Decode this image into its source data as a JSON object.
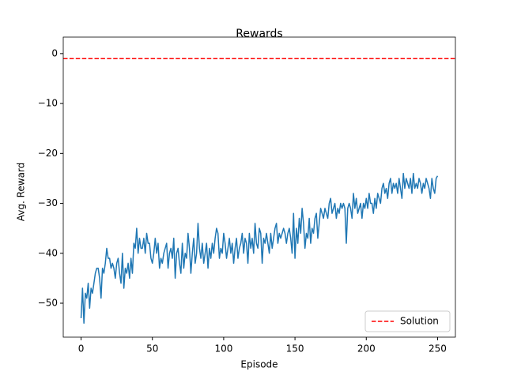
{
  "chart_data": {
    "type": "line",
    "title": "Rewards",
    "xlabel": "Episode",
    "ylabel": "Avg. Reward",
    "xlim": [
      -12.5,
      262.5
    ],
    "ylim": [
      -56.8,
      3.3
    ],
    "xticks": [
      0,
      50,
      100,
      150,
      200,
      250
    ],
    "yticks": [
      {
        "value": 0,
        "label": "0"
      },
      {
        "value": -10,
        "label": "−10"
      },
      {
        "value": -20,
        "label": "−20"
      },
      {
        "value": -30,
        "label": "−30"
      },
      {
        "value": -40,
        "label": "−40"
      },
      {
        "value": -50,
        "label": "−50"
      }
    ],
    "legend": "lower right",
    "x": [
      0,
      1,
      2,
      3,
      4,
      5,
      6,
      7,
      8,
      9,
      10,
      11,
      12,
      13,
      14,
      15,
      16,
      17,
      18,
      19,
      20,
      21,
      22,
      23,
      24,
      25,
      26,
      27,
      28,
      29,
      30,
      31,
      32,
      33,
      34,
      35,
      36,
      37,
      38,
      39,
      40,
      41,
      42,
      43,
      44,
      45,
      46,
      47,
      48,
      49,
      50,
      51,
      52,
      53,
      54,
      55,
      56,
      57,
      58,
      59,
      60,
      61,
      62,
      63,
      64,
      65,
      66,
      67,
      68,
      69,
      70,
      71,
      72,
      73,
      74,
      75,
      76,
      77,
      78,
      79,
      80,
      81,
      82,
      83,
      84,
      85,
      86,
      87,
      88,
      89,
      90,
      91,
      92,
      93,
      94,
      95,
      96,
      97,
      98,
      99,
      100,
      101,
      102,
      103,
      104,
      105,
      106,
      107,
      108,
      109,
      110,
      111,
      112,
      113,
      114,
      115,
      116,
      117,
      118,
      119,
      120,
      121,
      122,
      123,
      124,
      125,
      126,
      127,
      128,
      129,
      130,
      131,
      132,
      133,
      134,
      135,
      136,
      137,
      138,
      139,
      140,
      141,
      142,
      143,
      144,
      145,
      146,
      147,
      148,
      149,
      150,
      151,
      152,
      153,
      154,
      155,
      156,
      157,
      158,
      159,
      160,
      161,
      162,
      163,
      164,
      165,
      166,
      167,
      168,
      169,
      170,
      171,
      172,
      173,
      174,
      175,
      176,
      177,
      178,
      179,
      180,
      181,
      182,
      183,
      184,
      185,
      186,
      187,
      188,
      189,
      190,
      191,
      192,
      193,
      194,
      195,
      196,
      197,
      198,
      199,
      200,
      201,
      202,
      203,
      204,
      205,
      206,
      207,
      208,
      209,
      210,
      211,
      212,
      213,
      214,
      215,
      216,
      217,
      218,
      219,
      220,
      221,
      222,
      223,
      224,
      225,
      226,
      227,
      228,
      229,
      230,
      231,
      232,
      233,
      234,
      235,
      236,
      237,
      238,
      239,
      240,
      241,
      242,
      243,
      244,
      245,
      246,
      247,
      248,
      249,
      250
    ],
    "series": [
      {
        "color": "#1f77b4",
        "values": [
          -53,
          -47,
          -54,
          -48,
          -49,
          -46,
          -51,
          -47,
          -48,
          -46,
          -44,
          -43,
          -43,
          -45,
          -49,
          -43,
          -44,
          -42,
          -39,
          -41,
          -41,
          -43,
          -42,
          -43,
          -45,
          -42,
          -41,
          -44,
          -46,
          -40,
          -47,
          -43,
          -44,
          -42,
          -45,
          -41,
          -44,
          -38,
          -39,
          -35,
          -40,
          -37,
          -39,
          -39,
          -37,
          -40,
          -36,
          -38,
          -38,
          -41,
          -42,
          -40,
          -37,
          -40,
          -38,
          -43,
          -41,
          -42,
          -40,
          -39,
          -38,
          -43,
          -40,
          -39,
          -41,
          -37,
          -45,
          -40,
          -39,
          -42,
          -44,
          -38,
          -43,
          -40,
          -41,
          -36,
          -39,
          -44,
          -40,
          -37,
          -42,
          -40,
          -34,
          -39,
          -41,
          -38,
          -42,
          -40,
          -38,
          -43,
          -39,
          -41,
          -38,
          -40,
          -37,
          -35,
          -36,
          -41,
          -39,
          -40,
          -36,
          -38,
          -41,
          -39,
          -37,
          -40,
          -38,
          -42,
          -39,
          -37,
          -41,
          -39,
          -38,
          -36,
          -40,
          -37,
          -38,
          -42,
          -36,
          -39,
          -37,
          -40,
          -34,
          -38,
          -39,
          -35,
          -36,
          -42,
          -37,
          -38,
          -36,
          -38,
          -40,
          -36,
          -39,
          -37,
          -35,
          -34,
          -38,
          -36,
          -37,
          -36,
          -35,
          -36,
          -38,
          -36,
          -35,
          -37,
          -40,
          -32,
          -41,
          -35,
          -38,
          -33,
          -36,
          -31,
          -34,
          -39,
          -36,
          -37,
          -33,
          -38,
          -35,
          -36,
          -33,
          -32,
          -37,
          -34,
          -31,
          -32,
          -33,
          -31,
          -32,
          -33,
          -30,
          -29,
          -32,
          -31,
          -30,
          -33,
          -31,
          -32,
          -30,
          -31,
          -30,
          -31,
          -38,
          -31,
          -30,
          -31,
          -33,
          -28,
          -31,
          -29,
          -32,
          -31,
          -30,
          -33,
          -30,
          -31,
          -29,
          -31,
          -28,
          -30,
          -30,
          -32,
          -29,
          -31,
          -28,
          -29,
          -30,
          -27,
          -26,
          -28,
          -27,
          -29,
          -26,
          -25,
          -28,
          -26,
          -27,
          -26,
          -28,
          -25,
          -27,
          -29,
          -24,
          -27,
          -25,
          -26,
          -27,
          -25,
          -28,
          -24,
          -27,
          -26,
          -27,
          -25,
          -26,
          -28,
          -26,
          -27,
          -25,
          -26,
          -27,
          -29,
          -25,
          -27,
          -28,
          -25,
          -24.5
        ]
      }
    ],
    "hlines": [
      {
        "name": "Solution",
        "value": -1,
        "color": "#ff0000",
        "style": "dashed"
      }
    ]
  }
}
